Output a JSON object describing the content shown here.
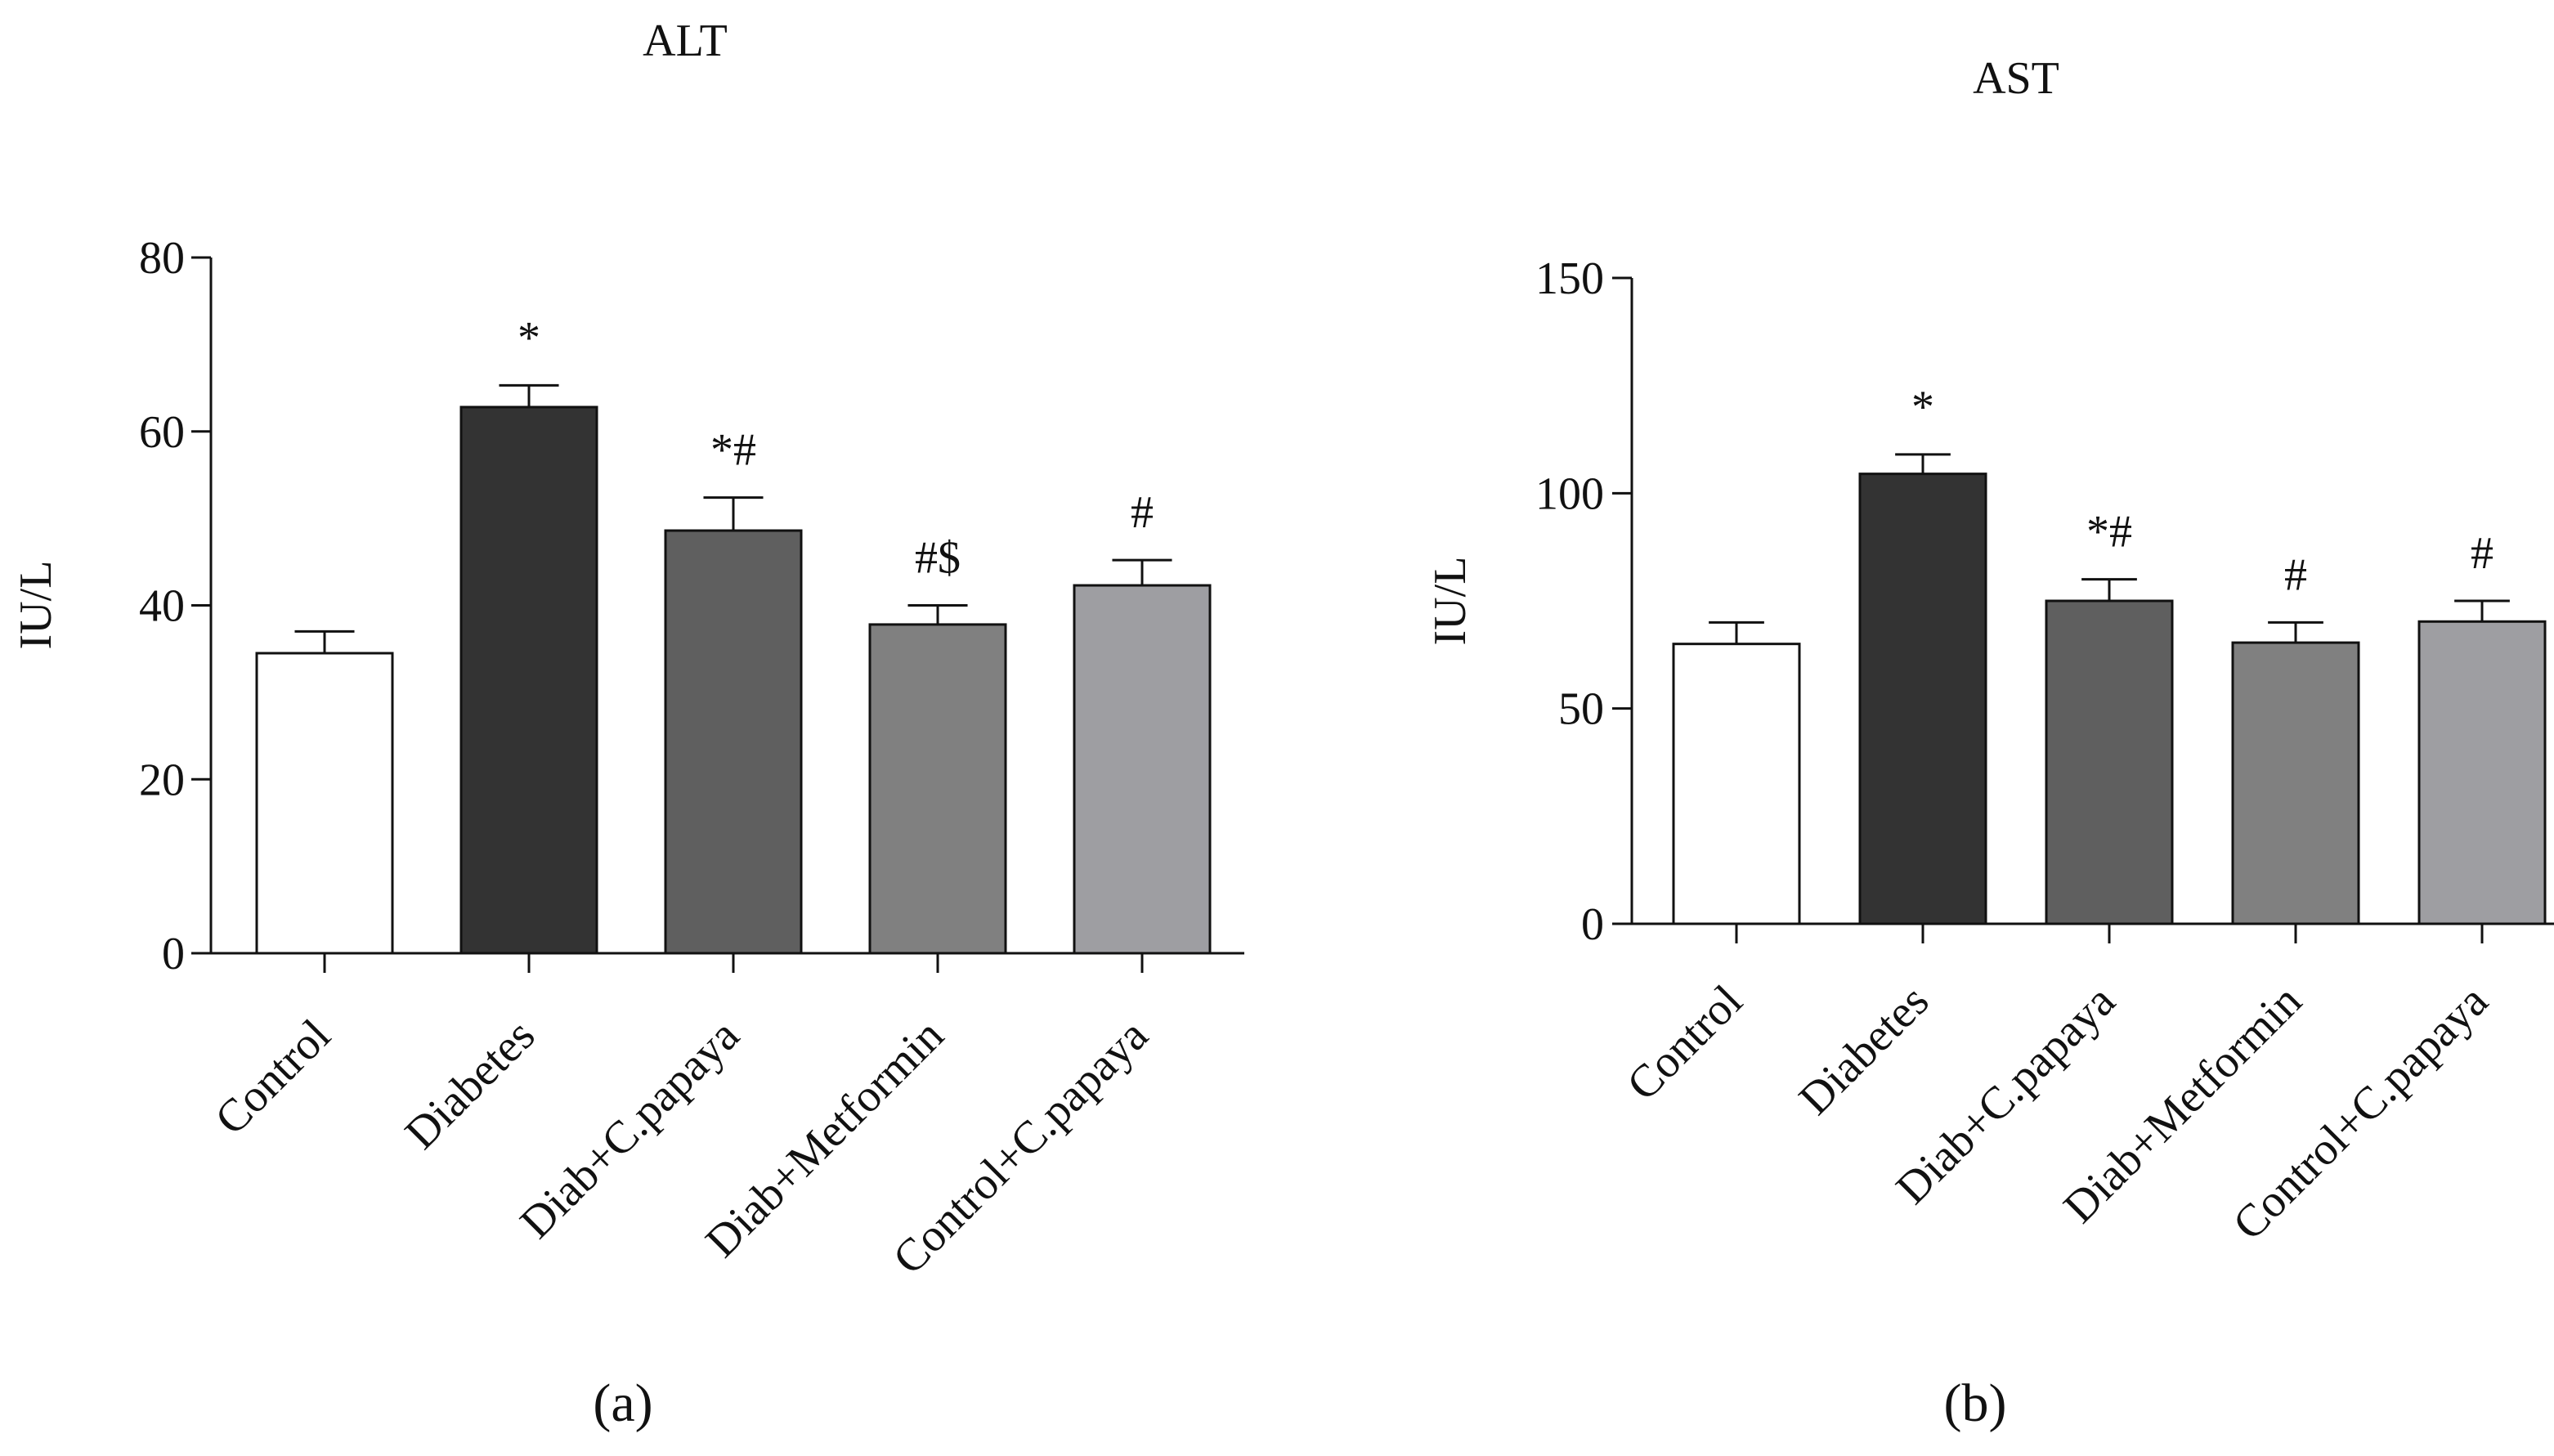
{
  "chart_data": [
    {
      "type": "bar",
      "title": "ALT",
      "xlabel": "",
      "ylabel": "IU/L",
      "ylim": [
        0,
        80
      ],
      "yticks": [
        0,
        20,
        40,
        60,
        80
      ],
      "categories": [
        "Control",
        "Diabetes",
        "Diab+C.papaya",
        "Diab+Metformin",
        "Control+C.papaya"
      ],
      "values": [
        34.5,
        62.8,
        48.6,
        37.8,
        42.3
      ],
      "errors": [
        2.5,
        2.5,
        3.8,
        2.2,
        2.9
      ],
      "annotations": [
        "",
        "*",
        "*#",
        "#$",
        "#"
      ],
      "colors": [
        "#ffffff",
        "#333333",
        "#5f5f5f",
        "#808080",
        "#9e9ea2"
      ],
      "panel_label": "(a)"
    },
    {
      "type": "bar",
      "title": "AST",
      "xlabel": "",
      "ylabel": "IU/L",
      "ylim": [
        0,
        150
      ],
      "yticks": [
        0,
        50,
        100,
        150
      ],
      "categories": [
        "Control",
        "Diabetes",
        "Diab+C.papaya",
        "Diab+Metformin",
        "Control+C.papaya"
      ],
      "values": [
        65,
        104.5,
        75,
        65.3,
        70.2
      ],
      "errors": [
        5,
        4.5,
        5,
        4.7,
        4.8
      ],
      "annotations": [
        "",
        "*",
        "*#",
        "#",
        "#"
      ],
      "colors": [
        "#ffffff",
        "#333333",
        "#5f5f5f",
        "#808080",
        "#9e9ea2"
      ],
      "panel_label": "(b)"
    }
  ]
}
